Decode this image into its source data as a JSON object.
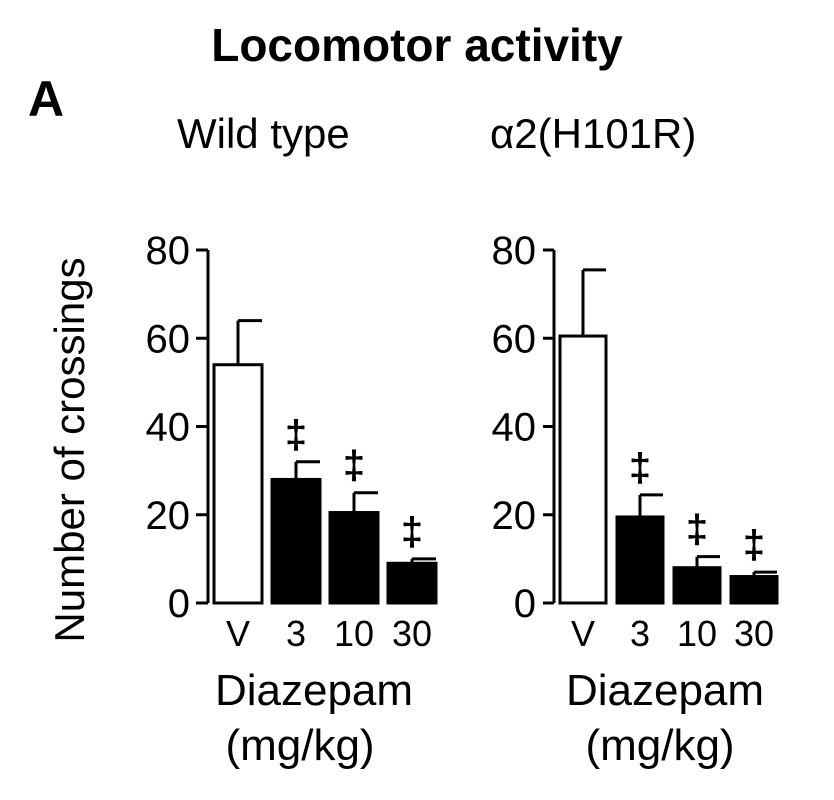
{
  "figure": {
    "panel_label": "A",
    "title": "Locomotor activity",
    "ylabel": "Number of crossings",
    "sig_marker": "‡"
  },
  "chart_data": [
    {
      "type": "bar",
      "title": "Wild type",
      "categories": [
        "V",
        "3",
        "10",
        "30"
      ],
      "xlabel_lines": [
        "Diazepam",
        "(mg/kg)"
      ],
      "ylabel": "Number of crossings",
      "ylim": [
        0,
        80
      ],
      "yticks": [
        0,
        20,
        40,
        60,
        80
      ],
      "values": [
        54,
        28,
        20.5,
        9
      ],
      "errors": [
        10,
        4,
        4.5,
        1
      ],
      "bar_fills": [
        "#ffffff",
        "#000000",
        "#000000",
        "#000000"
      ],
      "significance": [
        "",
        "‡",
        "‡",
        "‡"
      ],
      "grid": false
    },
    {
      "type": "bar",
      "title": "α2(H101R)",
      "categories": [
        "V",
        "3",
        "10",
        "30"
      ],
      "xlabel_lines": [
        "Diazepam",
        "(mg/kg)"
      ],
      "ylabel": "Number of crossings",
      "ylim": [
        0,
        80
      ],
      "yticks": [
        0,
        20,
        40,
        60,
        80
      ],
      "values": [
        60.5,
        19.5,
        8,
        6
      ],
      "errors": [
        15,
        5,
        2.5,
        1
      ],
      "bar_fills": [
        "#ffffff",
        "#000000",
        "#000000",
        "#000000"
      ],
      "significance": [
        "",
        "‡",
        "‡",
        "‡"
      ],
      "grid": false
    }
  ]
}
